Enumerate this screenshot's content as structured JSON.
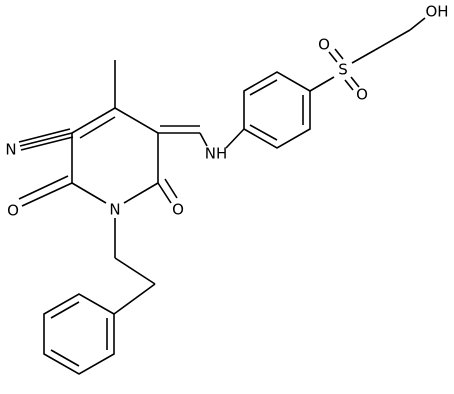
{
  "atoms": [
    "N",
    "O",
    "N",
    "O",
    "NH",
    "S",
    "O",
    "O",
    "OH"
  ]
}
